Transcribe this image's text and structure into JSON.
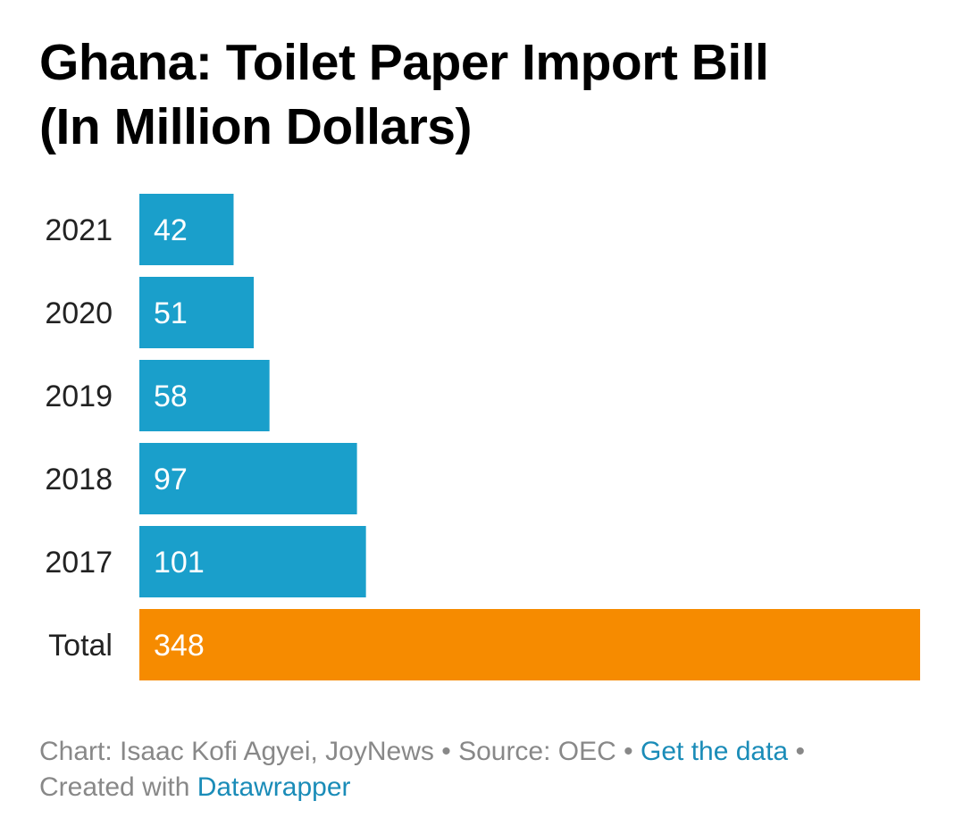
{
  "chart_data": {
    "type": "bar",
    "orientation": "horizontal",
    "title": "Ghana: Toilet Paper Import Bill",
    "subtitle": "(In Million Dollars)",
    "categories": [
      "2021",
      "2020",
      "2019",
      "2018",
      "2017",
      "Total"
    ],
    "values": [
      42,
      51,
      58,
      97,
      101,
      348
    ],
    "value_labels": [
      "42",
      "51",
      "58",
      "97",
      "101",
      "348"
    ],
    "bar_colors": [
      "#1a9fcb",
      "#1a9fcb",
      "#1a9fcb",
      "#1a9fcb",
      "#1a9fcb",
      "#f68b00"
    ],
    "xlim": [
      0,
      348
    ],
    "grid": false,
    "xlabel": "",
    "ylabel": ""
  },
  "footer": {
    "chart_prefix": "Chart: Isaac Kofi Agyei, JoyNews",
    "separator": "•",
    "source": "Source: OEC",
    "get_data_link": "Get the data",
    "created_with": "Created with",
    "datawrapper_link": "Datawrapper"
  },
  "colors": {
    "bar_blue": "#1a9fcb",
    "bar_orange": "#f68b00",
    "link": "#1a8cb8",
    "footer_text": "#888888"
  }
}
